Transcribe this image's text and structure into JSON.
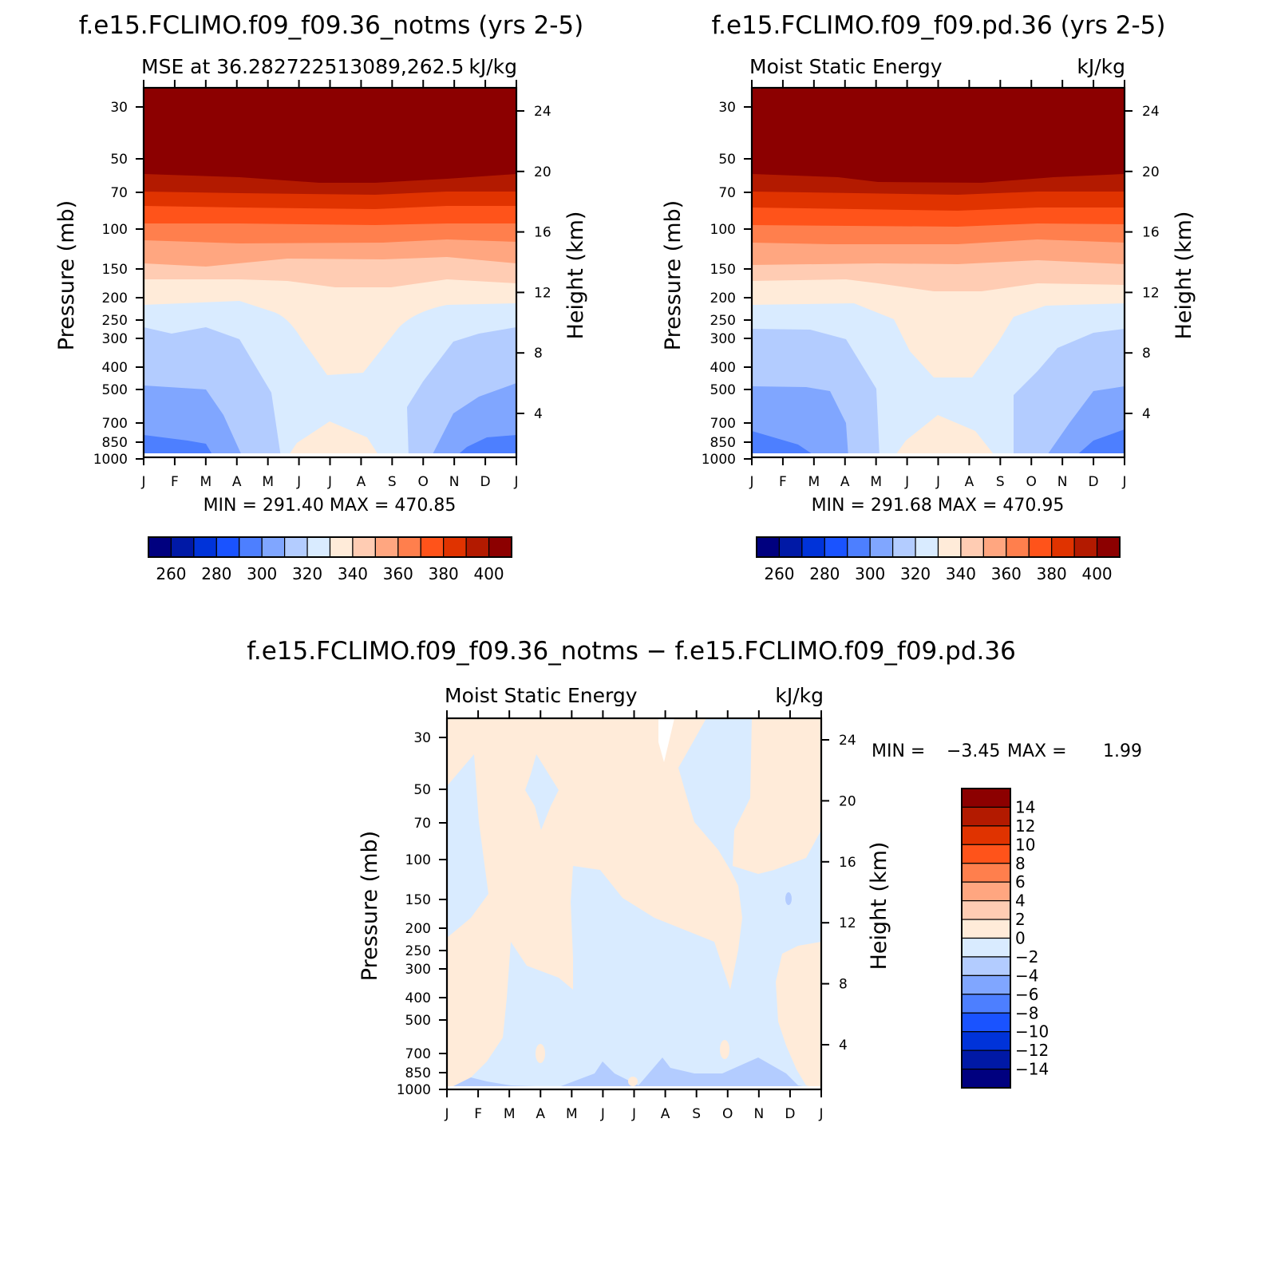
{
  "months": [
    "J",
    "F",
    "M",
    "A",
    "M",
    "J",
    "J",
    "A",
    "S",
    "O",
    "N",
    "D",
    "J"
  ],
  "pressure_ticks": [
    "30",
    "50",
    "70",
    "100",
    "150",
    "200",
    "250",
    "300",
    "400",
    "500",
    "700",
    "850",
    "1000"
  ],
  "height_ticks": [
    "24",
    "20",
    "16",
    "12",
    "8",
    "4"
  ],
  "left_axis_label": "Pressure (mb)",
  "right_axis_label": "Height (km)",
  "colors": {
    "mse": [
      "#00007f",
      "#0019a6",
      "#0033d9",
      "#1a53ff",
      "#4d7fff",
      "#80a6ff",
      "#b3ccff",
      "#d9ebff",
      "#ffebd9",
      "#ffccb3",
      "#ffa680",
      "#ff7f4d",
      "#ff531a",
      "#e03300",
      "#b31a00",
      "#8c0000"
    ],
    "diff": [
      "#00007f",
      "#0019a6",
      "#0033d9",
      "#1a53ff",
      "#4d7fff",
      "#80a6ff",
      "#b3ccff",
      "#d9ebff",
      "#ffebd9",
      "#ffccb3",
      "#ffa680",
      "#ff7f4d",
      "#ff531a",
      "#e03300",
      "#b31a00",
      "#8c0000"
    ]
  },
  "chart_data": [
    {
      "type": "contour",
      "panel": "top-left",
      "title": "f.e15.FCLIMO.f09_f09.36_notms (yrs 2-5)",
      "subtitle_left": "MSE at 36.282722513089,262.5",
      "subtitle_right": "kJ/kg",
      "min_max": "MIN = 291.40 MAX = 470.85",
      "x_categories": [
        "J",
        "F",
        "M",
        "A",
        "M",
        "J",
        "J",
        "A",
        "S",
        "O",
        "N",
        "D",
        "J"
      ],
      "y_levels_mb": [
        30,
        50,
        70,
        100,
        150,
        200,
        250,
        300,
        400,
        500,
        700,
        850,
        1000
      ],
      "colorbar_labels": [
        "260",
        "280",
        "300",
        "320",
        "340",
        "360",
        "380",
        "400"
      ]
    },
    {
      "type": "contour",
      "panel": "top-right",
      "title": "f.e15.FCLIMO.f09_f09.pd.36 (yrs 2-5)",
      "subtitle_left": "Moist Static Energy",
      "subtitle_right": "kJ/kg",
      "min_max": "MIN = 291.68 MAX = 470.95",
      "x_categories": [
        "J",
        "F",
        "M",
        "A",
        "M",
        "J",
        "J",
        "A",
        "S",
        "O",
        "N",
        "D",
        "J"
      ],
      "y_levels_mb": [
        30,
        50,
        70,
        100,
        150,
        200,
        250,
        300,
        400,
        500,
        700,
        850,
        1000
      ],
      "colorbar_labels": [
        "260",
        "280",
        "300",
        "320",
        "340",
        "360",
        "380",
        "400"
      ]
    },
    {
      "type": "contour",
      "panel": "bottom",
      "title": "f.e15.FCLIMO.f09_f09.36_notms − f.e15.FCLIMO.f09_f09.pd.36",
      "subtitle_left": "Moist Static Energy",
      "subtitle_right": "kJ/kg",
      "min_label": "MIN =",
      "min_value": "−3.45",
      "max_label": "MAX =",
      "max_value": "1.99",
      "x_categories": [
        "J",
        "F",
        "M",
        "A",
        "M",
        "J",
        "J",
        "A",
        "S",
        "O",
        "N",
        "D",
        "J"
      ],
      "y_levels_mb": [
        30,
        50,
        70,
        100,
        150,
        200,
        250,
        300,
        400,
        500,
        700,
        850,
        1000
      ],
      "colorbar_labels": [
        "14",
        "12",
        "10",
        "8",
        "6",
        "4",
        "2",
        "0",
        "−2",
        "−4",
        "−6",
        "−8",
        "−10",
        "−12",
        "−14"
      ]
    }
  ]
}
